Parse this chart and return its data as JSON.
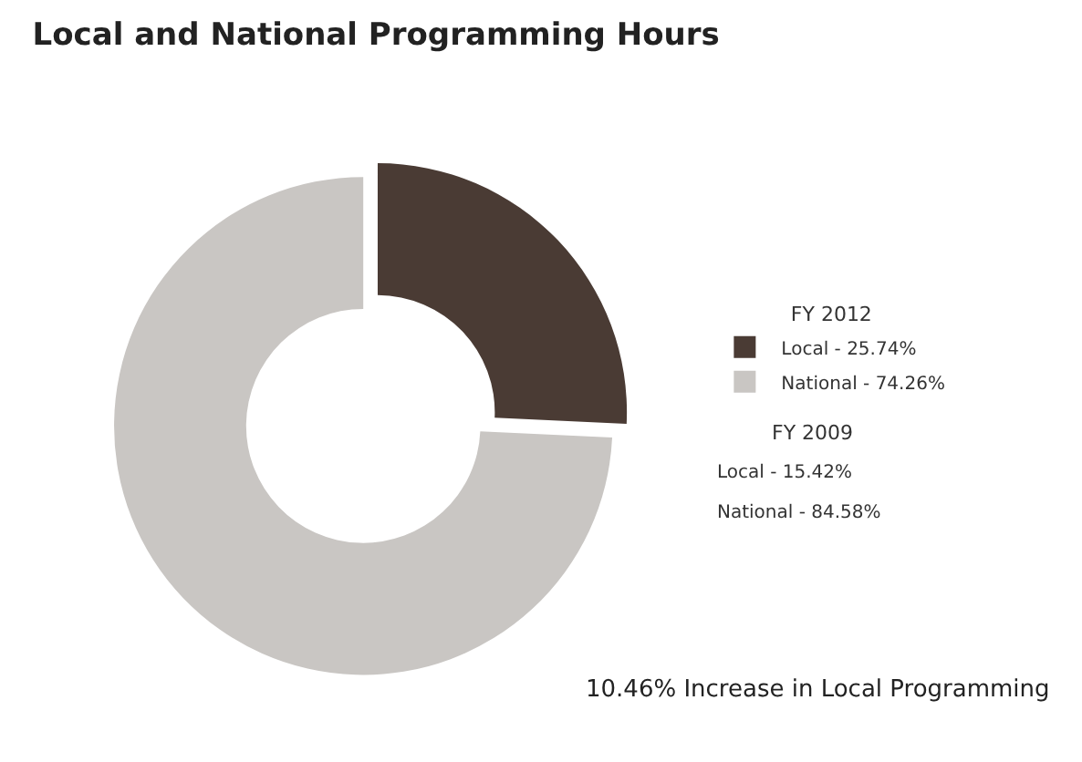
{
  "chart_data": {
    "type": "donut",
    "title": "Local and National Programming Hours",
    "categories": [
      "Local - 25.74%",
      "National - 74.26%"
    ],
    "values": [
      25.74,
      74.26
    ],
    "colors": [
      "#4a3b34",
      "#c9c6c3"
    ],
    "legend_title": "FY 2012",
    "legend": "right",
    "annotations": [
      "FY 2009",
      "Local - 15.42%",
      "National - 84.58%",
      "10.46% Increase in Local Programming"
    ]
  }
}
